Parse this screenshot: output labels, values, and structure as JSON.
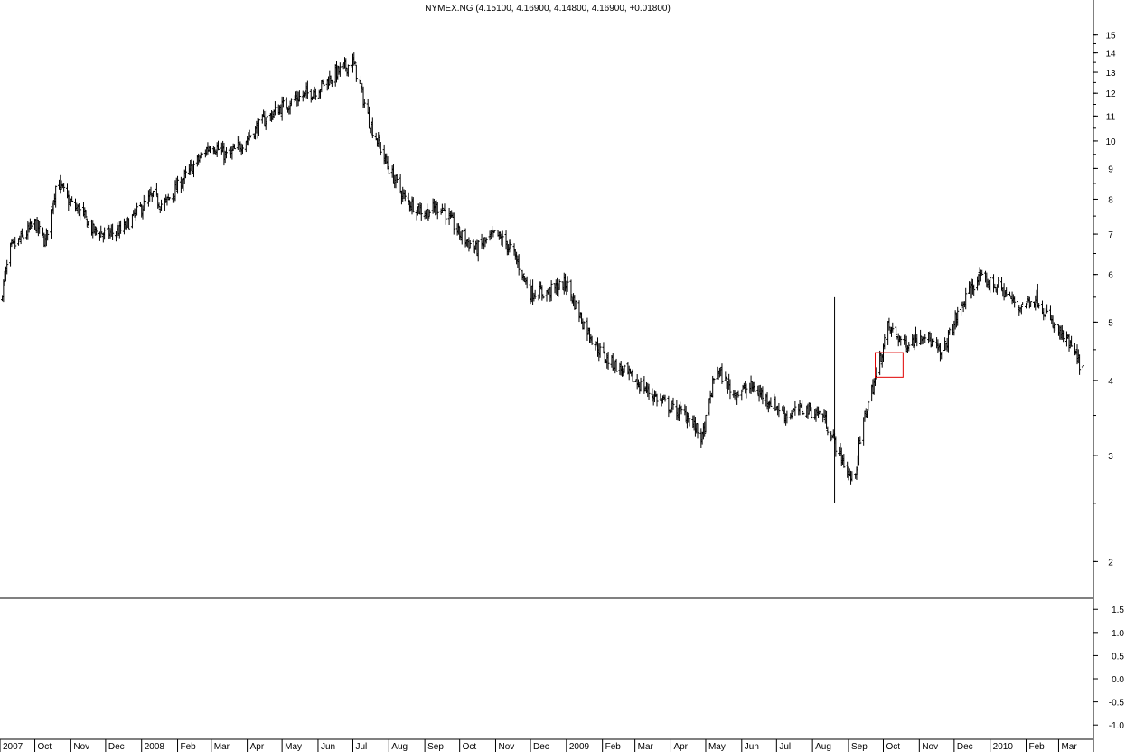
{
  "chart_data": [
    {
      "type": "ohlc",
      "title": "NYMEX.NG (4.15100, 4.16900, 4.14800, 4.16900, +0.01800)",
      "yscale": "log",
      "ylim": [
        1.75,
        16
      ],
      "yticks": [
        2,
        3,
        4,
        5,
        6,
        7,
        8,
        9,
        10,
        11,
        12,
        13,
        14,
        15
      ],
      "xlim": [
        "2007-09-01",
        "2010-03-31"
      ],
      "xticks": [
        {
          "label": "2007",
          "date": "2007-09-01"
        },
        {
          "label": "Oct",
          "date": "2007-10-01"
        },
        {
          "label": "Nov",
          "date": "2007-11-01"
        },
        {
          "label": "Dec",
          "date": "2007-12-01"
        },
        {
          "label": "2008",
          "date": "2008-01-01"
        },
        {
          "label": "Feb",
          "date": "2008-02-01"
        },
        {
          "label": "Mar",
          "date": "2008-03-01"
        },
        {
          "label": "Apr",
          "date": "2008-04-01"
        },
        {
          "label": "May",
          "date": "2008-05-01"
        },
        {
          "label": "Jun",
          "date": "2008-06-01"
        },
        {
          "label": "Jul",
          "date": "2008-07-01"
        },
        {
          "label": "Aug",
          "date": "2008-08-01"
        },
        {
          "label": "Sep",
          "date": "2008-09-01"
        },
        {
          "label": "Oct",
          "date": "2008-10-01"
        },
        {
          "label": "Nov",
          "date": "2008-11-01"
        },
        {
          "label": "Dec",
          "date": "2008-12-01"
        },
        {
          "label": "2009",
          "date": "2009-01-01"
        },
        {
          "label": "Feb",
          "date": "2009-02-01"
        },
        {
          "label": "Mar",
          "date": "2009-03-01"
        },
        {
          "label": "Apr",
          "date": "2009-04-01"
        },
        {
          "label": "May",
          "date": "2009-05-01"
        },
        {
          "label": "Jun",
          "date": "2009-06-01"
        },
        {
          "label": "Jul",
          "date": "2009-07-01"
        },
        {
          "label": "Aug",
          "date": "2009-08-01"
        },
        {
          "label": "Sep",
          "date": "2009-09-01"
        },
        {
          "label": "Oct",
          "date": "2009-10-01"
        },
        {
          "label": "Nov",
          "date": "2009-11-01"
        },
        {
          "label": "Dec",
          "date": "2009-12-01"
        },
        {
          "label": "2010",
          "date": "2010-01-01"
        },
        {
          "label": "Feb",
          "date": "2010-02-01"
        },
        {
          "label": "Mar",
          "date": "2010-03-01"
        }
      ],
      "series": [
        {
          "x": [
            "2007-09-01",
            "2007-09-10",
            "2007-09-20",
            "2007-10-01",
            "2007-10-10",
            "2007-10-20",
            "2007-10-31",
            "2007-11-10",
            "2007-11-20",
            "2007-12-01",
            "2007-12-15",
            "2007-12-28",
            "2008-01-10",
            "2008-01-20",
            "2008-02-01",
            "2008-02-15",
            "2008-03-01",
            "2008-03-15",
            "2008-04-01",
            "2008-04-15",
            "2008-05-01",
            "2008-05-15",
            "2008-06-01",
            "2008-06-15",
            "2008-07-01",
            "2008-07-03",
            "2008-07-15",
            "2008-08-01",
            "2008-08-15",
            "2008-09-01",
            "2008-09-15",
            "2008-10-01",
            "2008-10-15",
            "2008-11-01",
            "2008-11-15",
            "2008-12-01",
            "2008-12-15",
            "2009-01-01",
            "2009-01-15",
            "2009-02-01",
            "2009-02-15",
            "2009-03-01",
            "2009-03-15",
            "2009-04-01",
            "2009-04-15",
            "2009-04-28",
            "2009-05-10",
            "2009-05-25",
            "2009-06-10",
            "2009-06-25",
            "2009-07-10",
            "2009-07-25",
            "2009-08-10",
            "2009-08-25",
            "2009-09-05",
            "2009-09-15",
            "2009-09-25",
            "2009-10-05",
            "2009-10-20",
            "2009-11-05",
            "2009-11-20",
            "2009-12-05",
            "2009-12-20",
            "2010-01-01",
            "2010-01-10",
            "2010-01-25",
            "2010-02-10",
            "2010-02-25",
            "2010-03-10",
            "2010-03-22"
          ],
          "y": [
            5.4,
            6.6,
            6.9,
            7.3,
            6.8,
            8.6,
            7.9,
            7.6,
            7.1,
            7.0,
            7.1,
            7.6,
            8.1,
            7.8,
            8.4,
            9.1,
            9.9,
            9.4,
            10.1,
            10.8,
            11.4,
            11.8,
            12.2,
            12.9,
            13.5,
            13.2,
            10.8,
            9.0,
            8.0,
            7.6,
            7.8,
            7.0,
            6.6,
            7.0,
            6.6,
            5.6,
            5.6,
            5.8,
            5.0,
            4.4,
            4.2,
            4.0,
            3.8,
            3.6,
            3.5,
            3.2,
            4.2,
            3.8,
            3.9,
            3.7,
            3.5,
            3.6,
            3.5,
            3.0,
            2.7,
            3.5,
            4.1,
            4.9,
            4.6,
            4.8,
            4.4,
            5.2,
            5.9,
            5.8,
            5.7,
            5.3,
            5.5,
            4.9,
            4.6,
            4.17
          ]
        }
      ],
      "annotations": [
        {
          "type": "vertical-line",
          "date": "2009-08-20",
          "from": 2.5,
          "to": 5.5
        },
        {
          "type": "box",
          "x0": "2009-09-24",
          "x1": "2009-10-18",
          "y0": 4.05,
          "y1": 4.45,
          "color": "#e00000"
        }
      ]
    },
    {
      "type": "indicator",
      "ylim": [
        -1.25,
        1.7
      ],
      "yticks": [
        1.5,
        1.0,
        0.5,
        0.0,
        -0.5,
        -1.0
      ],
      "ytick_labels": [
        "1.5",
        "1.0",
        "0.5",
        "0.0",
        "-0.5",
        "-1.0"
      ]
    }
  ]
}
